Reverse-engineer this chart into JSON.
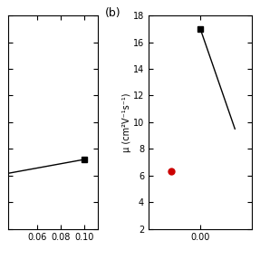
{
  "panel_a": {
    "line_x": [
      0.035,
      0.1
    ],
    "line_y": [
      15.2,
      16.5
    ],
    "marker_x": [
      0.1
    ],
    "marker_y": [
      16.5
    ],
    "marker": "s",
    "color": "black",
    "markersize": 4,
    "xticks": [
      0.06,
      0.08,
      0.1
    ],
    "xtick_labels": [
      "0.06",
      "0.08",
      "0.10"
    ],
    "xlim": [
      0.035,
      0.112
    ],
    "ylim": [
      10.0,
      30.0
    ],
    "linewidth": 1.0
  },
  "panel_b": {
    "line_x": [
      0.0,
      0.006
    ],
    "line_y": [
      17.0,
      9.5
    ],
    "marker_x": [
      0.0
    ],
    "marker_y": [
      17.0
    ],
    "marker": "s",
    "color": "black",
    "markersize": 4,
    "dot_x": [
      -0.005
    ],
    "dot_y": [
      6.3
    ],
    "dot_color": "#cc0000",
    "dot_marker": "o",
    "dot_markersize": 5,
    "ylabel": "μ (cm²V⁻¹s⁻¹)",
    "xticks": [
      0.0
    ],
    "xtick_labels": [
      "0.00"
    ],
    "xlim": [
      -0.009,
      0.009
    ],
    "ylim": [
      2,
      18
    ],
    "yticks": [
      2,
      4,
      6,
      8,
      10,
      12,
      14,
      16,
      18
    ],
    "label_b": "(b)",
    "linewidth": 1.0
  },
  "figure_bg": "#ffffff",
  "tick_fontsize": 7,
  "ylabel_fontsize": 7
}
